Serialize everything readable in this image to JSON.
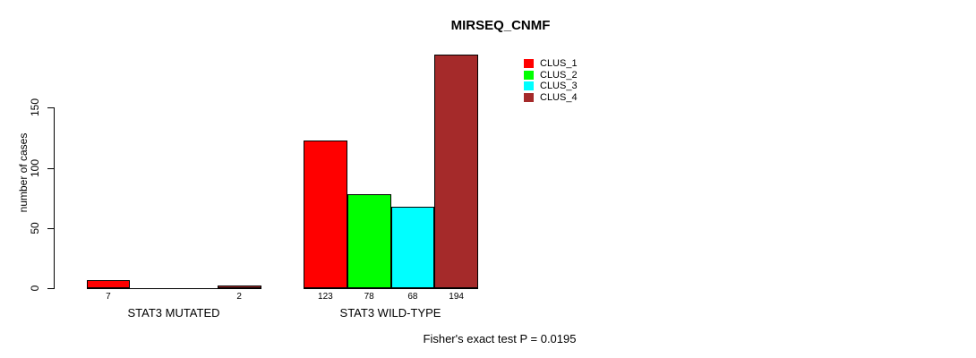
{
  "chart_data": {
    "type": "bar",
    "title": "MIRSEQ_CNMF",
    "ylabel": "number of cases",
    "yticks": [
      0,
      50,
      100,
      150
    ],
    "ylim": [
      0,
      150
    ],
    "grid": false,
    "legend_position": "top-right-inside",
    "groups": [
      "STAT3 MUTATED",
      "STAT3 WILD-TYPE"
    ],
    "series": [
      {
        "name": "CLUS_1",
        "color": "#ff0000",
        "values": [
          7,
          123
        ]
      },
      {
        "name": "CLUS_2",
        "color": "#00ff00",
        "values": [
          0,
          78
        ]
      },
      {
        "name": "CLUS_3",
        "color": "#00ffff",
        "values": [
          0,
          68
        ]
      },
      {
        "name": "CLUS_4",
        "color": "#a52a2a",
        "values": [
          2,
          194
        ]
      }
    ],
    "bar_value_labels": [
      [
        "7",
        "",
        "",
        "2"
      ],
      [
        "123",
        "78",
        "68",
        "194"
      ]
    ],
    "footnote": "Fisher's exact test P = 0.0195"
  },
  "colors": {
    "axis": "#000000",
    "background": "#ffffff",
    "text": "#000000"
  }
}
